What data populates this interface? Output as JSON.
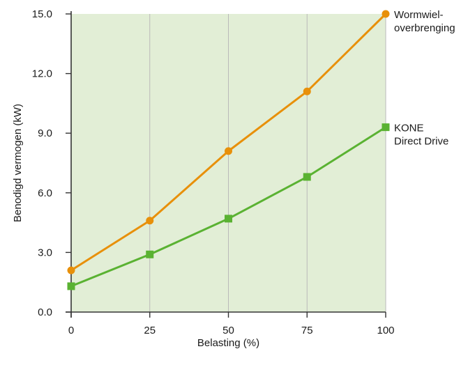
{
  "chart_data": {
    "type": "line",
    "title": "",
    "xlabel": "Belasting (%)",
    "ylabel": "Benodigd vermogen (kW)",
    "x": [
      0,
      25,
      50,
      75,
      100
    ],
    "x_tick_labels": [
      "0",
      "25",
      "50",
      "75",
      "100"
    ],
    "y_tick_labels": [
      "0.0",
      "3.0",
      "6.0",
      "9.0",
      "12.0",
      "15.0"
    ],
    "y_ticks": [
      0,
      3,
      6,
      9,
      12,
      15
    ],
    "xlim": [
      0,
      100
    ],
    "ylim": [
      0,
      15
    ],
    "grid": "vertical",
    "legend_placement": "right, at line ends",
    "plot_background": "#e2eed6",
    "series": [
      {
        "name": "Wormwiel-overbrenging",
        "label_lines": [
          "Wormwiel-",
          "overbrenging"
        ],
        "values": [
          2.1,
          4.6,
          8.1,
          11.1,
          15.0
        ],
        "color": "#e8900a",
        "marker": "circle"
      },
      {
        "name": "KONE Direct Drive",
        "label_lines": [
          "KONE",
          "Direct Drive"
        ],
        "values": [
          1.3,
          2.9,
          4.7,
          6.8,
          9.3
        ],
        "color": "#5ab232",
        "marker": "square"
      }
    ]
  }
}
